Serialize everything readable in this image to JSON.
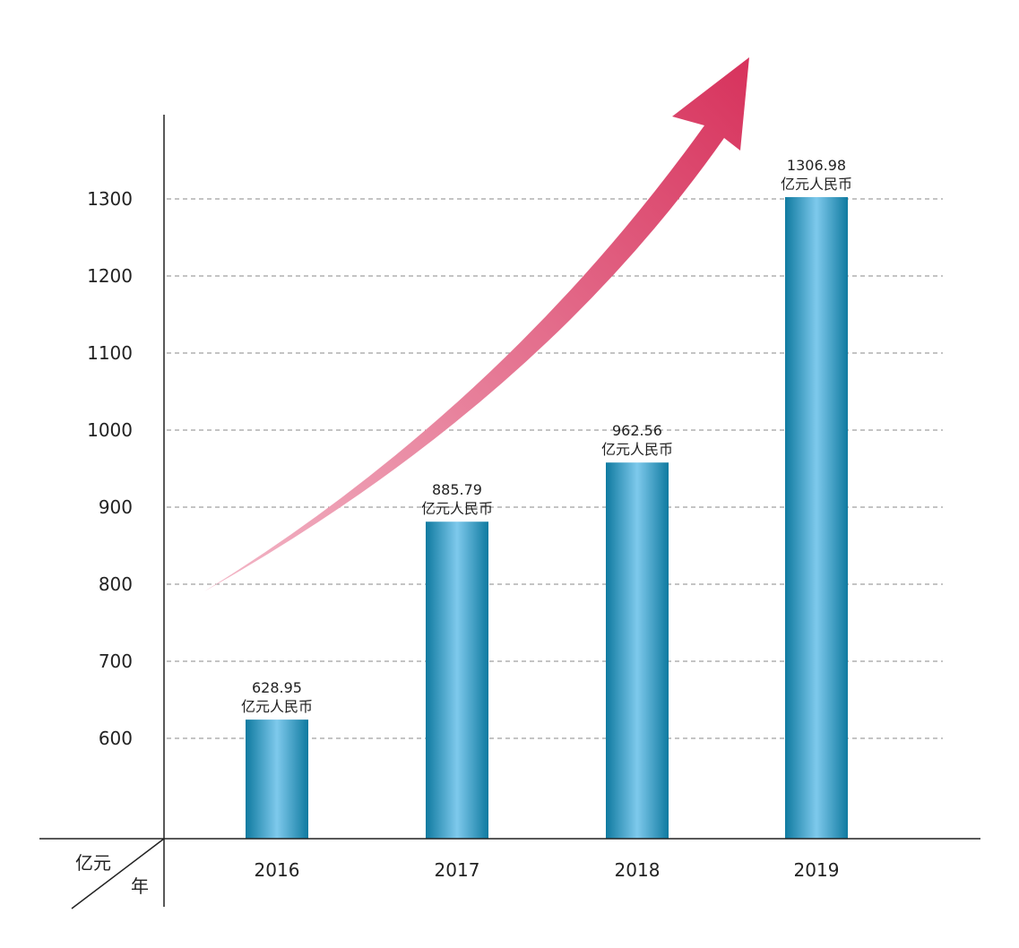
{
  "chart_data": {
    "type": "bar",
    "categories": [
      "2016",
      "2017",
      "2018",
      "2019"
    ],
    "values": [
      628.95,
      885.79,
      962.56,
      1306.98
    ],
    "value_unit_label": "亿元人民币",
    "y_ticks": [
      600,
      700,
      800,
      900,
      1000,
      1100,
      1200,
      1300
    ],
    "ylabel": "亿元",
    "xlabel": "年",
    "title": "",
    "grid": true,
    "trend_arrow": true,
    "colors": {
      "bar_dark": "#0f7aa0",
      "bar_light": "#7ec9ec",
      "arrow_start": "#f3b8c8",
      "arrow_end": "#d7325c",
      "grid": "#888888",
      "axis": "#222222"
    }
  }
}
